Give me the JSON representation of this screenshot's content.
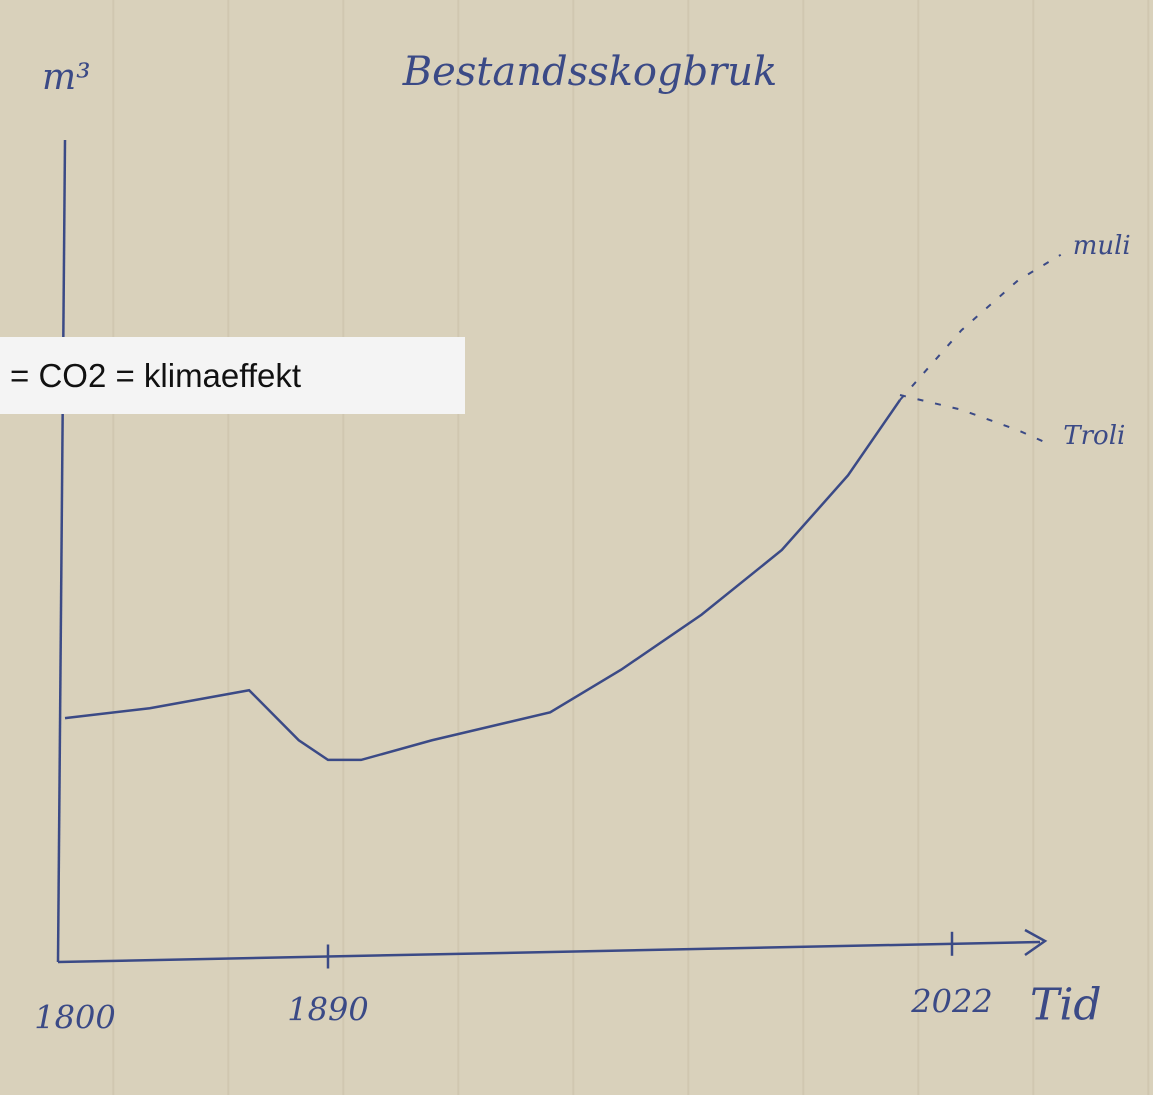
{
  "chart_data": {
    "type": "line",
    "title": "Bestandsskogbruk",
    "y_label": "m³",
    "x_label": "Tid",
    "overlay_text": "= CO2 = klimaeffekt",
    "xticks": [
      1800,
      1890,
      2022
    ],
    "ylim": [
      0,
      100
    ],
    "series": [
      {
        "color": "#3b4a86",
        "dashed": false,
        "x": [
          1800,
          1829,
          1863,
          1880,
          1890,
          1897,
          1912,
          1937,
          1952,
          1969,
          1986,
          2000,
          2011
        ],
        "values": [
          29.5,
          30.7,
          32.9,
          26.8,
          24.4,
          24.4,
          26.8,
          30.2,
          35.4,
          42.1,
          50,
          59.1,
          68.3
        ]
      },
      {
        "color": "#3b4a86",
        "dashed": true,
        "label": "muli",
        "x": [
          2011,
          2024,
          2036,
          2045
        ],
        "values": [
          68.3,
          76.8,
          82.9,
          86
        ]
      },
      {
        "color": "#3b4a86",
        "dashed": true,
        "label": "Troli",
        "x": [
          2011,
          2024,
          2036,
          2043
        ],
        "values": [
          68.9,
          67.1,
          64.6,
          62.8
        ]
      }
    ]
  }
}
